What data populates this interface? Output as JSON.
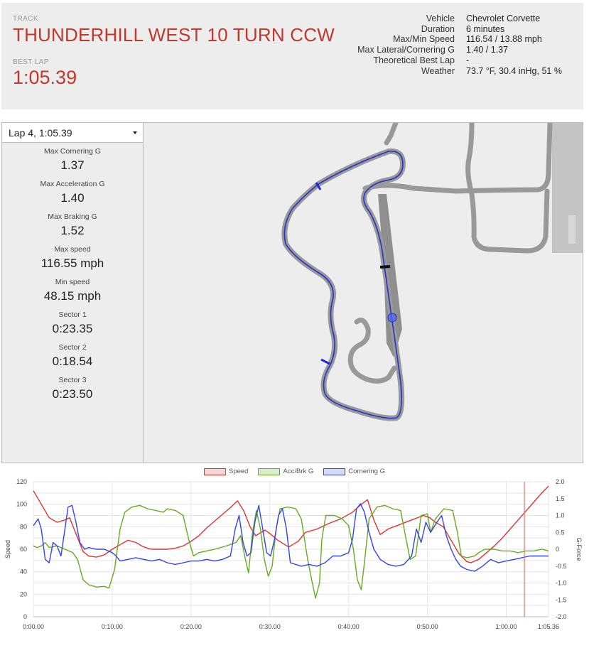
{
  "header": {
    "track_label": "TRACK",
    "track_name": "THUNDERHILL WEST 10 TURN CCW",
    "best_lap_label": "BEST LAP",
    "best_lap_value": "1:05.39",
    "info": [
      {
        "key": "Vehicle",
        "value": "Chevrolet Corvette"
      },
      {
        "key": "Duration",
        "value": "6 minutes"
      },
      {
        "key": "Max/Min Speed",
        "value": "116.54 / 13.88 mph"
      },
      {
        "key": "Max Lateral/Cornering G",
        "value": "1.40 / 1.37"
      },
      {
        "key": "Theoretical Best Lap",
        "value": "-"
      },
      {
        "key": "Weather",
        "value": "73.7 °F, 30.4 inHg, 51 %"
      }
    ],
    "accent_color": "#c0392b"
  },
  "lap_selector": {
    "selected": "Lap 4, 1:05.39"
  },
  "stats": [
    {
      "label": "Max Cornering G",
      "value": "1.37"
    },
    {
      "label": "Max Acceleration G",
      "value": "1.40"
    },
    {
      "label": "Max Braking G",
      "value": "1.52"
    },
    {
      "label": "Max speed",
      "value": "116.55 mph"
    },
    {
      "label": "Min speed",
      "value": "48.15 mph"
    },
    {
      "label": "Sector 1",
      "value": "0:23.35"
    },
    {
      "label": "Sector 2",
      "value": "0:18.54"
    },
    {
      "label": "Sector 3",
      "value": "0:23.50"
    }
  ],
  "map": {
    "track_color": "#999999",
    "lap_line_color": "#2233cc",
    "icons": [
      "sector-marker-icon",
      "start-finish-marker-icon",
      "car-position-icon"
    ]
  },
  "chart_data": {
    "type": "line",
    "title": "",
    "xlabel": "",
    "ylabel": "Speed",
    "y2label": "G-Force",
    "ylim": [
      0,
      120
    ],
    "y2lim": [
      -2.0,
      2.0
    ],
    "xlim": [
      0,
      65.36
    ],
    "yticks": [
      "0",
      "20",
      "40",
      "60",
      "80",
      "100",
      "120"
    ],
    "y2ticks": [
      "2.0",
      "1.5",
      "1.0",
      "0.5",
      "0",
      "-0.5",
      "-1.0",
      "-1.5",
      "-2.0"
    ],
    "xticks": [
      {
        "t": 0,
        "label": "0:00.00"
      },
      {
        "t": 10,
        "label": "0:10.00"
      },
      {
        "t": 20,
        "label": "0:20.00"
      },
      {
        "t": 30,
        "label": "0:30.00"
      },
      {
        "t": 40,
        "label": "0:40.00"
      },
      {
        "t": 50,
        "label": "0:50.00"
      },
      {
        "t": 60,
        "label": "1:00.00"
      },
      {
        "t": 65.36,
        "label": "1:05.36"
      }
    ],
    "cursor_x": 62.3,
    "grid": true,
    "legend_position": "top",
    "series": [
      {
        "name": "Speed",
        "axis": "left",
        "color": "#dd3333",
        "points": [
          [
            0,
            112
          ],
          [
            1,
            100
          ],
          [
            2,
            88
          ],
          [
            3,
            84
          ],
          [
            4,
            86
          ],
          [
            4.6,
            88
          ],
          [
            5.5,
            72
          ],
          [
            6.3,
            58
          ],
          [
            7,
            54
          ],
          [
            8,
            53
          ],
          [
            9,
            55
          ],
          [
            10,
            60
          ],
          [
            11,
            64
          ],
          [
            12,
            68
          ],
          [
            13,
            66
          ],
          [
            14,
            62
          ],
          [
            15,
            60
          ],
          [
            16,
            60
          ],
          [
            17,
            60
          ],
          [
            18,
            61
          ],
          [
            19,
            63
          ],
          [
            20,
            67
          ],
          [
            21,
            72
          ],
          [
            22,
            79
          ],
          [
            23,
            85
          ],
          [
            24,
            91
          ],
          [
            25,
            97
          ],
          [
            25.9,
            103
          ],
          [
            26.7,
            94
          ],
          [
            27.5,
            80
          ],
          [
            28.2,
            72
          ],
          [
            29.4,
            77
          ],
          [
            30,
            74
          ],
          [
            31,
            68
          ],
          [
            32.4,
            62
          ],
          [
            33.6,
            67
          ],
          [
            34.5,
            75
          ],
          [
            36,
            78
          ],
          [
            37.5,
            83
          ],
          [
            39,
            87
          ],
          [
            40.5,
            93
          ],
          [
            41.6,
            100
          ],
          [
            42.4,
            104
          ],
          [
            43.2,
            86
          ],
          [
            44,
            73
          ],
          [
            45,
            78
          ],
          [
            46.5,
            82
          ],
          [
            48,
            86
          ],
          [
            49.5,
            90
          ],
          [
            50.3,
            88
          ],
          [
            51,
            84
          ],
          [
            52,
            80
          ],
          [
            53,
            68
          ],
          [
            54,
            56
          ],
          [
            55,
            49
          ],
          [
            55.5,
            48
          ],
          [
            56.5,
            51
          ],
          [
            57.5,
            57
          ],
          [
            58.5,
            63
          ],
          [
            59.5,
            70
          ],
          [
            60.5,
            78
          ],
          [
            61.5,
            86
          ],
          [
            62.5,
            94
          ],
          [
            63.5,
            102
          ],
          [
            64.5,
            110
          ],
          [
            65.36,
            116
          ]
        ]
      },
      {
        "name": "Acc/Brk G",
        "axis": "right",
        "color": "#66aa22",
        "points": [
          [
            0,
            0.1
          ],
          [
            0.5,
            0.05
          ],
          [
            1,
            0.1
          ],
          [
            1.5,
            0.2
          ],
          [
            2,
            0.05
          ],
          [
            3,
            0.1
          ],
          [
            4,
            0.0
          ],
          [
            5,
            -0.1
          ],
          [
            5.6,
            -0.3
          ],
          [
            6.3,
            -0.9
          ],
          [
            7,
            -1.05
          ],
          [
            8,
            -1.12
          ],
          [
            9,
            -1.1
          ],
          [
            9.6,
            -1.15
          ],
          [
            10.3,
            -0.6
          ],
          [
            11,
            0.6
          ],
          [
            11.6,
            1.1
          ],
          [
            12.5,
            1.25
          ],
          [
            13.5,
            1.3
          ],
          [
            14.5,
            1.2
          ],
          [
            15.5,
            1.15
          ],
          [
            16.5,
            1.1
          ],
          [
            17,
            1.2
          ],
          [
            18,
            1.15
          ],
          [
            19,
            1.0
          ],
          [
            19.7,
            0.3
          ],
          [
            20.3,
            -0.2
          ],
          [
            21,
            -0.1
          ],
          [
            22,
            -0.05
          ],
          [
            23,
            0.0
          ],
          [
            24.5,
            0.1
          ],
          [
            25.7,
            0.2
          ],
          [
            26.3,
            0.4
          ],
          [
            26.9,
            -0.3
          ],
          [
            27.3,
            -0.7
          ],
          [
            27.8,
            0.5
          ],
          [
            28.3,
            1.15
          ],
          [
            28.8,
            0.6
          ],
          [
            29.3,
            -0.3
          ],
          [
            29.8,
            -0.8
          ],
          [
            30.3,
            -0.5
          ],
          [
            30.8,
            0.6
          ],
          [
            31.3,
            1.2
          ],
          [
            32.3,
            1.25
          ],
          [
            33.3,
            1.2
          ],
          [
            34,
            0.9
          ],
          [
            34.8,
            -0.3
          ],
          [
            35.3,
            -0.9
          ],
          [
            35.8,
            -1.45
          ],
          [
            36.3,
            -1.0
          ],
          [
            36.6,
            0.3
          ],
          [
            37.1,
            1.0
          ],
          [
            38.2,
            1.0
          ],
          [
            39.2,
            0.9
          ],
          [
            40,
            0.7
          ],
          [
            40.6,
            0.0
          ],
          [
            41.1,
            -0.9
          ],
          [
            41.6,
            -1.2
          ],
          [
            42,
            -0.4
          ],
          [
            42.6,
            0.9
          ],
          [
            43.6,
            1.25
          ],
          [
            44.6,
            1.3
          ],
          [
            45.6,
            1.2
          ],
          [
            46.6,
            1.15
          ],
          [
            47.2,
            0.4
          ],
          [
            47.8,
            -0.3
          ],
          [
            48.5,
            -0.2
          ],
          [
            49.2,
            1.0
          ],
          [
            50,
            1.05
          ],
          [
            50.4,
            0.5
          ],
          [
            51,
            0.9
          ],
          [
            52.1,
            1.2
          ],
          [
            53.2,
            1.15
          ],
          [
            53.8,
            0.5
          ],
          [
            54.3,
            -0.2
          ],
          [
            55,
            -0.25
          ],
          [
            56,
            -0.2
          ],
          [
            56.5,
            -0.1
          ],
          [
            57.3,
            0.0
          ],
          [
            58.5,
            0.0
          ],
          [
            59.5,
            -0.05
          ],
          [
            60.5,
            -0.05
          ],
          [
            61.5,
            -0.1
          ],
          [
            62.5,
            -0.05
          ],
          [
            63.5,
            -0.05
          ],
          [
            64.5,
            0.0
          ],
          [
            65.36,
            -0.05
          ]
        ]
      },
      {
        "name": "Cornering G",
        "axis": "right",
        "color": "#3344ee",
        "points": [
          [
            0,
            0.7
          ],
          [
            0.6,
            0.9
          ],
          [
            1,
            0.6
          ],
          [
            1.5,
            -0.3
          ],
          [
            2,
            -0.4
          ],
          [
            2.5,
            0.2
          ],
          [
            3,
            0.1
          ],
          [
            3.5,
            -0.2
          ],
          [
            4,
            0.6
          ],
          [
            4.4,
            1.25
          ],
          [
            4.9,
            1.3
          ],
          [
            5.4,
            0.8
          ],
          [
            5.9,
            0.2
          ],
          [
            6.5,
            0.0
          ],
          [
            7,
            0.05
          ],
          [
            8,
            0.0
          ],
          [
            9,
            0.0
          ],
          [
            10,
            -0.1
          ],
          [
            10.5,
            -0.2
          ],
          [
            11,
            -0.35
          ],
          [
            12,
            -0.3
          ],
          [
            13,
            -0.25
          ],
          [
            14,
            -0.3
          ],
          [
            15,
            -0.35
          ],
          [
            16,
            -0.3
          ],
          [
            17,
            -0.4
          ],
          [
            18,
            -0.45
          ],
          [
            19,
            -0.4
          ],
          [
            20,
            -0.35
          ],
          [
            21,
            -0.35
          ],
          [
            22,
            -0.3
          ],
          [
            23,
            -0.35
          ],
          [
            24,
            -0.3
          ],
          [
            25,
            -0.2
          ],
          [
            25.6,
            0.6
          ],
          [
            26.1,
            1.0
          ],
          [
            26.6,
            0.2
          ],
          [
            27.1,
            -0.2
          ],
          [
            27.6,
            -0.1
          ],
          [
            28.1,
            0.8
          ],
          [
            28.6,
            1.3
          ],
          [
            29.1,
            0.6
          ],
          [
            29.6,
            -0.1
          ],
          [
            30.1,
            -0.2
          ],
          [
            30.6,
            0.3
          ],
          [
            31.1,
            1.0
          ],
          [
            31.6,
            1.2
          ],
          [
            32.1,
            0.6
          ],
          [
            32.6,
            -0.4
          ],
          [
            33.3,
            -0.45
          ],
          [
            34,
            -0.5
          ],
          [
            35,
            -0.45
          ],
          [
            36,
            -0.5
          ],
          [
            37,
            -0.4
          ],
          [
            38,
            -0.2
          ],
          [
            39,
            -0.2
          ],
          [
            40,
            -0.1
          ],
          [
            40.5,
            0.3
          ],
          [
            41,
            1.2
          ],
          [
            41.5,
            1.35
          ],
          [
            42,
            1.1
          ],
          [
            42.6,
            0.5
          ],
          [
            43.2,
            0.0
          ],
          [
            44,
            -0.3
          ],
          [
            45,
            -0.45
          ],
          [
            46,
            -0.5
          ],
          [
            47,
            -0.45
          ],
          [
            48,
            -0.2
          ],
          [
            48.6,
            0.6
          ],
          [
            49.2,
            0.2
          ],
          [
            49.8,
            0.8
          ],
          [
            50.4,
            0.5
          ],
          [
            51.2,
            0.8
          ],
          [
            51.8,
            1.0
          ],
          [
            52.4,
            0.4
          ],
          [
            53,
            0.0
          ],
          [
            53.6,
            -0.3
          ],
          [
            54.2,
            -0.5
          ],
          [
            55,
            -0.6
          ],
          [
            56,
            -0.65
          ],
          [
            57,
            -0.5
          ],
          [
            58,
            -0.3
          ],
          [
            59,
            -0.4
          ],
          [
            60,
            -0.35
          ],
          [
            61,
            -0.3
          ],
          [
            62,
            -0.25
          ],
          [
            63,
            -0.2
          ],
          [
            64,
            -0.2
          ],
          [
            65.36,
            -0.2
          ]
        ]
      }
    ]
  }
}
